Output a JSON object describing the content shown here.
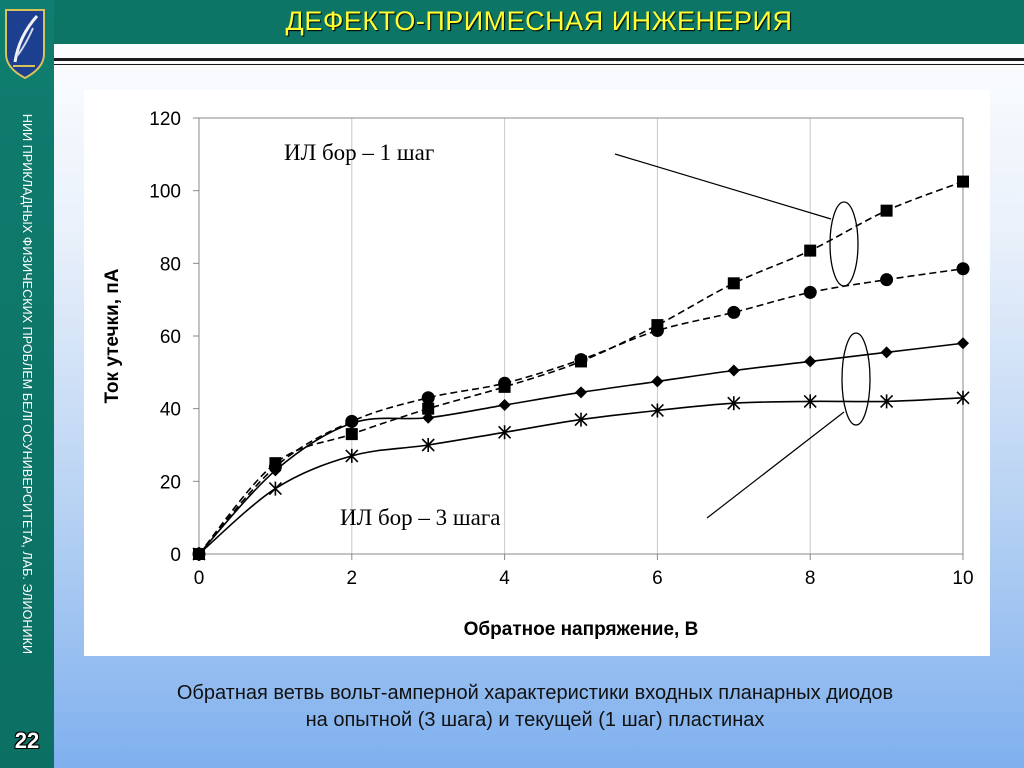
{
  "header": {
    "title": "ДЕФЕКТО-ПРИМЕСНАЯ ИНЖЕНЕРИЯ"
  },
  "sidebar": {
    "vertical_text": "НИИ ПРИКЛАДНЫХ ФИЗИЧЕСКИХ ПРОБЛЕМ БЕЛГОСУНИВЕРСИТЕТА, ЛАБ. ЭЛИОНИКИ",
    "page_number": "22"
  },
  "caption": {
    "line1": "Обратная ветвь вольт-амперной характеристики входных планарных диодов",
    "line2": "на опытной (3 шага) и текущей (1 шаг) пластинах"
  },
  "chart_data": {
    "type": "line",
    "xlabel": "Обратное напряжение, В",
    "ylabel": "Ток утечки, пА",
    "xlim": [
      0,
      10
    ],
    "ylim": [
      0,
      120
    ],
    "x_ticks": [
      "0",
      "2",
      "4",
      "6",
      "8",
      "10"
    ],
    "y_ticks": [
      "0",
      "20",
      "40",
      "60",
      "80",
      "100",
      "120"
    ],
    "grid": "vertical",
    "annotations": [
      "ИЛ бор – 1 шаг",
      "ИЛ бор – 3 шага"
    ],
    "series": [
      {
        "marker": "square",
        "style": "dashed",
        "x": [
          0,
          1,
          2,
          3,
          4,
          5,
          6,
          7,
          8,
          9,
          10
        ],
        "y": [
          0,
          25,
          33,
          40,
          46,
          53,
          63,
          74.5,
          83.5,
          94.5,
          102.5
        ]
      },
      {
        "marker": "circle",
        "style": "dashed",
        "x": [
          0,
          1,
          2,
          3,
          4,
          5,
          6,
          7,
          8,
          9,
          10
        ],
        "y": [
          0,
          24,
          36.5,
          43,
          47,
          53.5,
          61.5,
          66.5,
          72,
          75.5,
          78.5
        ]
      },
      {
        "marker": "diamond",
        "style": "solid",
        "x": [
          0,
          1,
          2,
          3,
          4,
          5,
          6,
          7,
          8,
          9,
          10
        ],
        "y": [
          0,
          23,
          36,
          37.5,
          41,
          44.5,
          47.5,
          50.5,
          53,
          55.5,
          58
        ]
      },
      {
        "marker": "asterisk",
        "style": "solid",
        "x": [
          0,
          1,
          2,
          3,
          4,
          5,
          6,
          7,
          8,
          9,
          10
        ],
        "y": [
          0,
          18,
          27,
          30,
          33.5,
          37,
          39.5,
          41.5,
          42,
          42,
          43
        ]
      }
    ]
  }
}
